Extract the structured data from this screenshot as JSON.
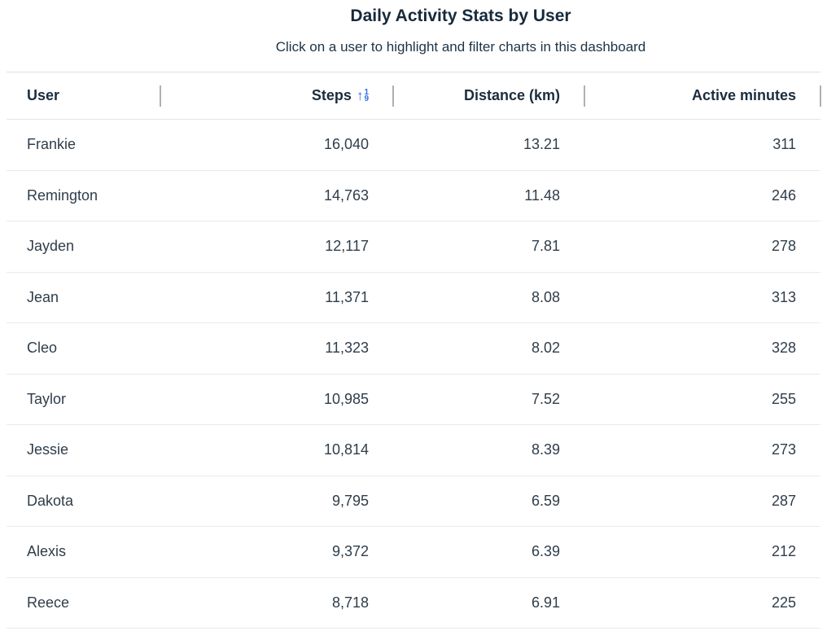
{
  "header": {
    "title": "Daily Activity Stats by User",
    "subtitle": "Click on a user to highlight and filter charts in this dashboard"
  },
  "table": {
    "columns": [
      {
        "label": "User"
      },
      {
        "label": "Steps",
        "sort_indicator": true
      },
      {
        "label": "Distance (km)"
      },
      {
        "label": "Active minutes"
      }
    ],
    "sort_icon": {
      "name": "sort-numeric-up-icon",
      "arrow": "↑",
      "top_digit": "1",
      "bottom_digit": "9",
      "color": "#2f6ee2"
    },
    "rows": [
      {
        "user": "Frankie",
        "steps": "16,040",
        "distance": "13.21",
        "active_minutes": "311"
      },
      {
        "user": "Remington",
        "steps": "14,763",
        "distance": "11.48",
        "active_minutes": "246"
      },
      {
        "user": "Jayden",
        "steps": "12,117",
        "distance": "7.81",
        "active_minutes": "278"
      },
      {
        "user": "Jean",
        "steps": "11,371",
        "distance": "8.08",
        "active_minutes": "313"
      },
      {
        "user": "Cleo",
        "steps": "11,323",
        "distance": "8.02",
        "active_minutes": "328"
      },
      {
        "user": "Taylor",
        "steps": "10,985",
        "distance": "7.52",
        "active_minutes": "255"
      },
      {
        "user": "Jessie",
        "steps": "10,814",
        "distance": "8.39",
        "active_minutes": "273"
      },
      {
        "user": "Dakota",
        "steps": "9,795",
        "distance": "6.59",
        "active_minutes": "287"
      },
      {
        "user": "Alexis",
        "steps": "9,372",
        "distance": "6.39",
        "active_minutes": "212"
      },
      {
        "user": "Reece",
        "steps": "8,718",
        "distance": "6.91",
        "active_minutes": "225"
      }
    ]
  },
  "colors": {
    "title_text": "#152a3b",
    "header_text": "#1b2d3d",
    "cell_text": "#2f3d4a",
    "row_border": "#e7eaec",
    "header_divider": "#aab1b8",
    "sort_icon_blue": "#2f6ee2",
    "background": "#ffffff"
  },
  "chart_data": {
    "type": "table",
    "title": "Daily Activity Stats by User",
    "subtitle": "Click on a user to highlight and filter charts in this dashboard",
    "columns": [
      "User",
      "Steps",
      "Distance (km)",
      "Active minutes"
    ],
    "rows": [
      [
        "Frankie",
        16040,
        13.21,
        311
      ],
      [
        "Remington",
        14763,
        11.48,
        246
      ],
      [
        "Jayden",
        12117,
        7.81,
        278
      ],
      [
        "Jean",
        11371,
        8.08,
        313
      ],
      [
        "Cleo",
        11323,
        8.02,
        328
      ],
      [
        "Taylor",
        10985,
        7.52,
        255
      ],
      [
        "Jessie",
        10814,
        8.39,
        273
      ],
      [
        "Dakota",
        9795,
        6.59,
        287
      ],
      [
        "Alexis",
        9372,
        6.39,
        212
      ],
      [
        "Reece",
        8718,
        6.91,
        225
      ]
    ],
    "sort_indicator_column": "Steps",
    "layout_hints": {
      "rows_ordered_by_steps": "descending",
      "numeric_columns_right_aligned": true,
      "grid": "horizontal row separators only, vertical ticks in header"
    }
  }
}
